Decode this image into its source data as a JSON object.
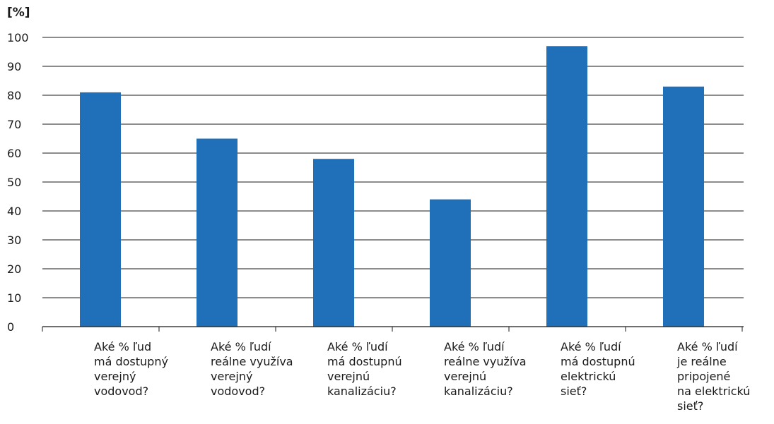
{
  "chart_data": {
    "type": "bar",
    "ylabel": "[%]",
    "ylim": [
      0,
      100
    ],
    "yticks": [
      "0",
      "10",
      "20",
      "30",
      "40",
      "50",
      "60",
      "70",
      "80",
      "90",
      "100"
    ],
    "grid": true,
    "bar_color": "#1f6fb9",
    "categories": [
      "Aké % ľud\nmá dostupný\nverejný\nvodovod?",
      "Aké % ľudí\nreálne využíva\nverejný\nvodovod?",
      "Aké % ľudí\nmá dostupnú\nverejnú\nkanalizáciu?",
      "Aké % ľudí\nreálne využíva\nverejnú\nkanalizáciu?",
      "Aké % ľudí\nmá dostupnú\nelektrickú\nsieť?",
      "Aké % ľudí\nje reálne\npripojené\nna elektrickú\nsieť?"
    ],
    "values": [
      81,
      65,
      58,
      44,
      97,
      83
    ]
  }
}
